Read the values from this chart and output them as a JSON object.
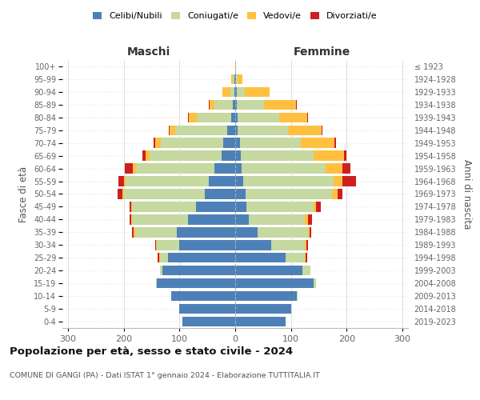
{
  "age_groups": [
    "0-4",
    "5-9",
    "10-14",
    "15-19",
    "20-24",
    "25-29",
    "30-34",
    "35-39",
    "40-44",
    "45-49",
    "50-54",
    "55-59",
    "60-64",
    "65-69",
    "70-74",
    "75-79",
    "80-84",
    "85-89",
    "90-94",
    "95-99",
    "100+"
  ],
  "birth_years": [
    "2019-2023",
    "2014-2018",
    "2009-2013",
    "2004-2008",
    "1999-2003",
    "1994-1998",
    "1989-1993",
    "1984-1988",
    "1979-1983",
    "1974-1978",
    "1969-1973",
    "1964-1968",
    "1959-1963",
    "1954-1958",
    "1949-1953",
    "1944-1948",
    "1939-1943",
    "1934-1938",
    "1929-1933",
    "1924-1928",
    "≤ 1923"
  ],
  "colors": {
    "celibe": "#4e80b8",
    "coniugato": "#c5d9a0",
    "vedovo": "#ffc040",
    "divorziato": "#cc2020"
  },
  "maschi": {
    "celibe": [
      95,
      100,
      115,
      140,
      130,
      120,
      100,
      105,
      85,
      70,
      55,
      48,
      38,
      25,
      22,
      14,
      7,
      4,
      2,
      2,
      0
    ],
    "coniugato": [
      0,
      0,
      0,
      2,
      5,
      15,
      40,
      75,
      100,
      115,
      145,
      148,
      140,
      128,
      112,
      93,
      62,
      33,
      7,
      2,
      0
    ],
    "vedovo": [
      0,
      0,
      0,
      0,
      0,
      2,
      2,
      2,
      2,
      2,
      3,
      3,
      5,
      8,
      10,
      10,
      14,
      9,
      14,
      3,
      0
    ],
    "divorziato": [
      0,
      0,
      0,
      0,
      0,
      2,
      2,
      3,
      3,
      3,
      8,
      10,
      15,
      5,
      2,
      2,
      2,
      2,
      0,
      0,
      0
    ]
  },
  "femmine": {
    "nubile": [
      90,
      100,
      110,
      140,
      120,
      90,
      65,
      40,
      25,
      20,
      18,
      15,
      12,
      10,
      8,
      5,
      5,
      3,
      3,
      2,
      0
    ],
    "coniugata": [
      0,
      0,
      2,
      5,
      15,
      35,
      60,
      90,
      100,
      120,
      155,
      162,
      150,
      130,
      110,
      90,
      74,
      48,
      14,
      3,
      0
    ],
    "vedova": [
      0,
      0,
      0,
      0,
      0,
      2,
      3,
      3,
      5,
      5,
      10,
      15,
      30,
      55,
      60,
      60,
      50,
      58,
      44,
      8,
      2
    ],
    "divorziata": [
      0,
      0,
      0,
      0,
      0,
      2,
      3,
      3,
      8,
      8,
      10,
      25,
      15,
      5,
      3,
      2,
      2,
      2,
      0,
      0,
      0
    ]
  },
  "xlim": 310,
  "title": "Popolazione per età, sesso e stato civile - 2024",
  "subtitle": "COMUNE DI GANGI (PA) - Dati ISTAT 1° gennaio 2024 - Elaborazione TUTTITALIA.IT",
  "ylabel_left": "Fasce di età",
  "ylabel_right": "Anni di nascita",
  "xlabel_maschi": "Maschi",
  "xlabel_femmine": "Femmine"
}
